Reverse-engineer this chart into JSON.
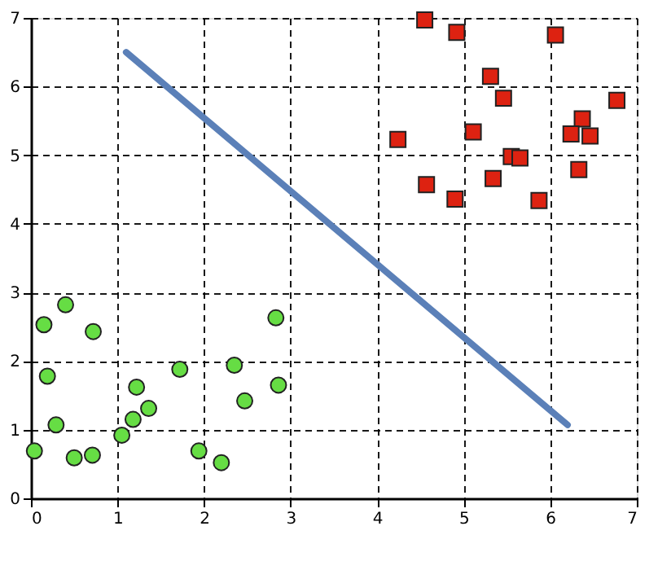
{
  "chart_data": {
    "type": "scatter",
    "xlim": [
      0,
      7
    ],
    "ylim": [
      0,
      7
    ],
    "xticks": [
      0,
      1,
      2,
      3,
      4,
      5,
      6,
      7
    ],
    "yticks": [
      0,
      1,
      2,
      3,
      4,
      5,
      6,
      7
    ],
    "grid": true,
    "legend": false,
    "series": [
      {
        "marker": "circle",
        "color": "#66dd44",
        "x": [
          0.04,
          0.15,
          0.4,
          0.72,
          0.19,
          0.29,
          0.5,
          0.71,
          1.05,
          1.18,
          1.22,
          1.36,
          1.72,
          1.94,
          2.2,
          2.35,
          2.47,
          2.83,
          2.86
        ],
        "values": [
          0.69,
          2.53,
          2.82,
          2.43,
          1.78,
          1.07,
          0.59,
          0.63,
          0.92,
          1.15,
          1.62,
          1.31,
          1.88,
          0.69,
          0.52,
          1.94,
          1.42,
          2.63,
          1.65
        ]
      },
      {
        "marker": "square",
        "color": "#dd2211",
        "x": [
          4.55,
          4.92,
          6.06,
          5.31,
          5.46,
          6.77,
          4.24,
          5.11,
          6.37,
          6.24,
          6.46,
          5.55,
          5.65,
          5.34,
          6.33,
          4.57,
          4.9,
          5.87
        ],
        "values": [
          6.97,
          6.79,
          6.75,
          6.15,
          5.83,
          5.8,
          5.23,
          5.34,
          5.53,
          5.31,
          5.28,
          4.98,
          4.96,
          4.66,
          4.79,
          4.57,
          4.36,
          4.34
        ]
      },
      {
        "type": "line",
        "marker": "none",
        "line_style": "solid",
        "color": "#5b80b8",
        "x": [
          1.1,
          6.2
        ],
        "values": [
          6.5,
          1.07
        ]
      }
    ]
  }
}
